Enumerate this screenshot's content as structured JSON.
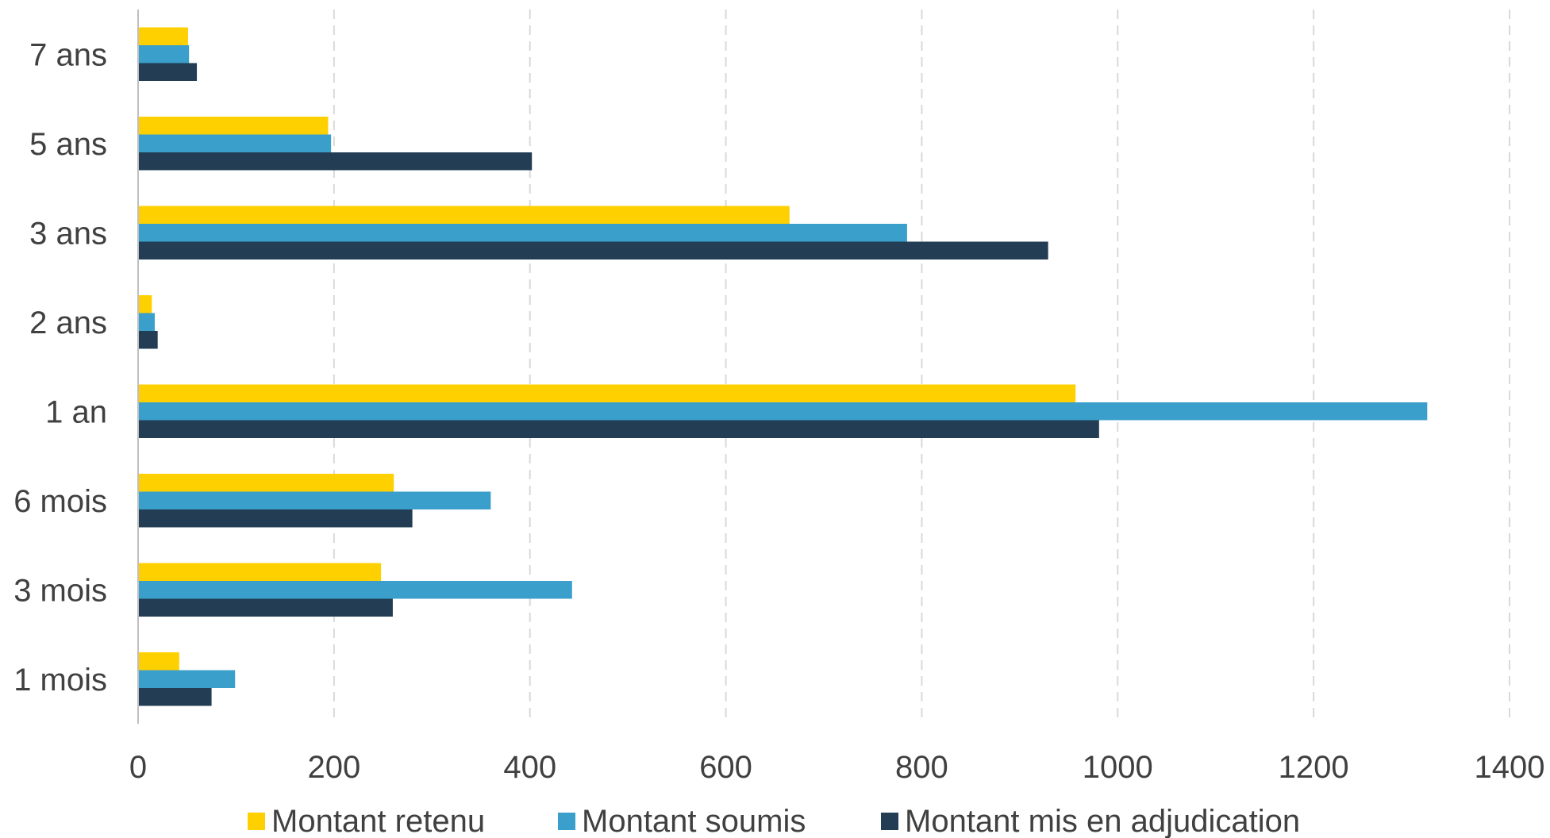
{
  "chart_data": {
    "type": "bar",
    "orientation": "horizontal",
    "categories": [
      "1 mois",
      "3 mois",
      "6 mois",
      "1 an",
      "2 ans",
      "3 ans",
      "5 ans",
      "7 ans"
    ],
    "series": [
      {
        "name": "Montant retenu",
        "color": "#FFD000",
        "values": [
          42,
          248,
          261,
          957,
          14,
          665,
          194,
          51
        ]
      },
      {
        "name": "Montant soumis",
        "color": "#3A9FCB",
        "values": [
          99,
          443,
          360,
          1316,
          17,
          785,
          197,
          52
        ]
      },
      {
        "name": "Montant mis en adjudication",
        "color": "#233D54",
        "values": [
          75,
          260,
          280,
          981,
          20,
          929,
          402,
          60
        ]
      }
    ],
    "xlim": [
      0,
      1400
    ],
    "xticks": [
      "0",
      "200",
      "400",
      "600",
      "800",
      "1000",
      "1200",
      "1400"
    ],
    "grid": "vertical dashed",
    "legend": "bottom",
    "title": "",
    "xlabel": "",
    "ylabel": ""
  }
}
